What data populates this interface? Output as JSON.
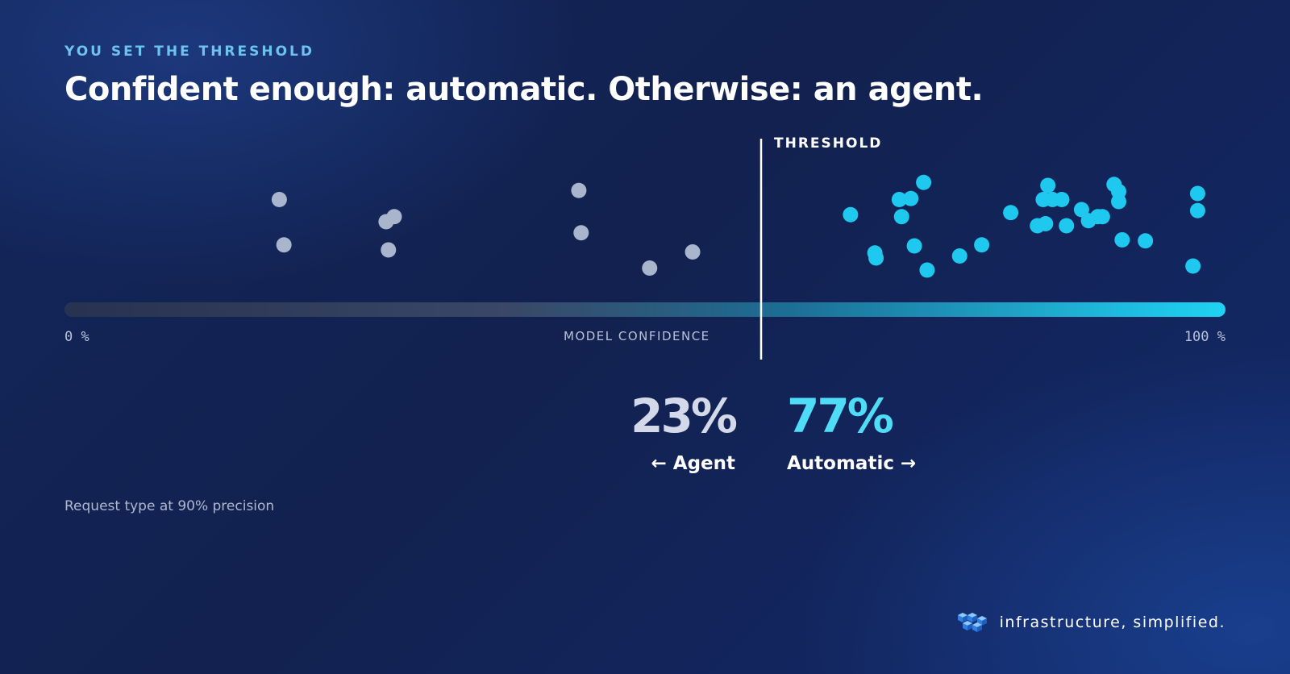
{
  "eyebrow": "YOU SET THE THRESHOLD",
  "title": "Confident enough: automatic. Otherwise: an agent.",
  "stats": {
    "agent_pct": "23%",
    "agent_label": "← Agent",
    "auto_pct": "77%",
    "auto_label": "Automatic →"
  },
  "footnote": "Request type at 90% precision",
  "brand": {
    "tagline": "infrastructure, simplified."
  },
  "colors": {
    "agent_point": "#a9b5cc",
    "auto_point": "#1ec8ee",
    "accent_eyebrow": "#6ec3ee",
    "auto_stat": "#4fdcf6"
  },
  "chart_data": {
    "type": "scatter",
    "xlabel": "MODEL CONFIDENCE",
    "xlim": [
      0,
      100
    ],
    "x_min_label": "0 %",
    "x_max_label": "100 %",
    "threshold": {
      "label": "THRESHOLD",
      "value": 60
    },
    "points": [
      {
        "x": 18.5,
        "y": 0.78
      },
      {
        "x": 18.9,
        "y": 0.33
      },
      {
        "x": 27.7,
        "y": 0.56
      },
      {
        "x": 28.4,
        "y": 0.61
      },
      {
        "x": 27.9,
        "y": 0.28
      },
      {
        "x": 44.3,
        "y": 0.87
      },
      {
        "x": 44.5,
        "y": 0.45
      },
      {
        "x": 50.4,
        "y": 0.1
      },
      {
        "x": 54.1,
        "y": 0.26
      },
      {
        "x": 67.7,
        "y": 0.63
      },
      {
        "x": 69.8,
        "y": 0.25
      },
      {
        "x": 69.9,
        "y": 0.2
      },
      {
        "x": 71.9,
        "y": 0.78
      },
      {
        "x": 72.1,
        "y": 0.61
      },
      {
        "x": 72.9,
        "y": 0.79
      },
      {
        "x": 73.2,
        "y": 0.32
      },
      {
        "x": 74.0,
        "y": 0.95
      },
      {
        "x": 74.3,
        "y": 0.08
      },
      {
        "x": 77.1,
        "y": 0.22
      },
      {
        "x": 79.0,
        "y": 0.33
      },
      {
        "x": 81.5,
        "y": 0.65
      },
      {
        "x": 83.8,
        "y": 0.52
      },
      {
        "x": 84.5,
        "y": 0.54
      },
      {
        "x": 84.7,
        "y": 0.92
      },
      {
        "x": 84.3,
        "y": 0.78
      },
      {
        "x": 85.1,
        "y": 0.78
      },
      {
        "x": 85.9,
        "y": 0.78
      },
      {
        "x": 86.3,
        "y": 0.52
      },
      {
        "x": 87.6,
        "y": 0.68
      },
      {
        "x": 88.2,
        "y": 0.57
      },
      {
        "x": 89.0,
        "y": 0.61
      },
      {
        "x": 89.4,
        "y": 0.61
      },
      {
        "x": 90.4,
        "y": 0.93
      },
      {
        "x": 90.8,
        "y": 0.86
      },
      {
        "x": 90.8,
        "y": 0.76
      },
      {
        "x": 91.1,
        "y": 0.38
      },
      {
        "x": 93.1,
        "y": 0.37
      },
      {
        "x": 97.2,
        "y": 0.12
      },
      {
        "x": 97.6,
        "y": 0.67
      },
      {
        "x": 97.6,
        "y": 0.84
      }
    ]
  }
}
